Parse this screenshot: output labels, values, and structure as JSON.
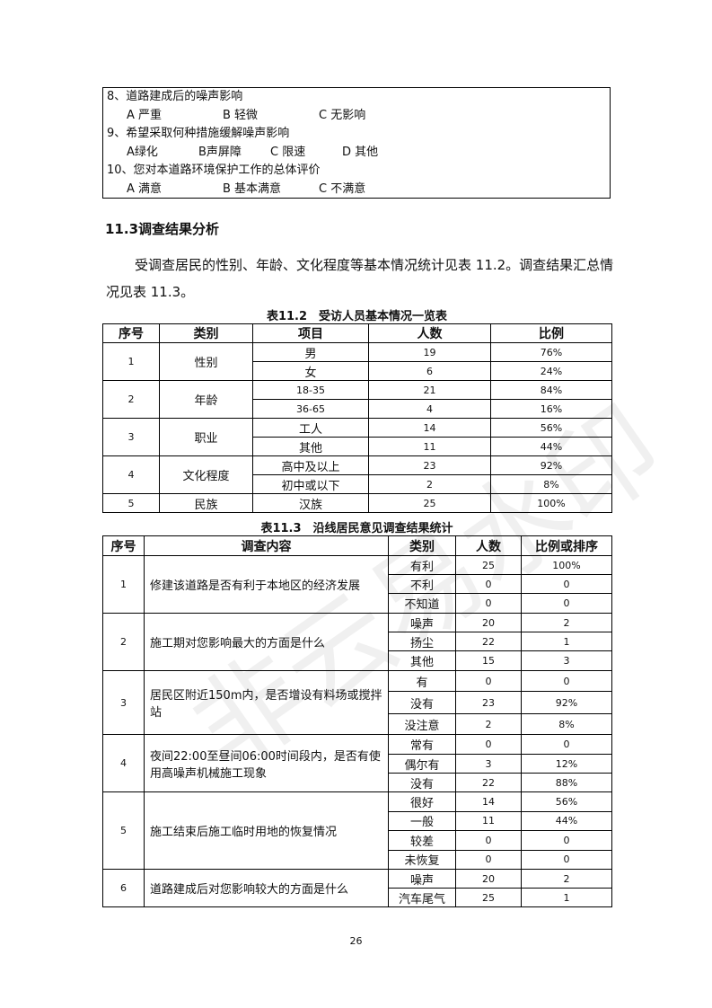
{
  "questions": [
    {
      "q": "8、道路建成后的噪声影响",
      "opts": [
        "A 严重",
        "B 轻微",
        "C 无影响"
      ]
    },
    {
      "q": "9、希望采取何种措施缓解噪声影响",
      "opts": [
        "A绿化",
        "B声屏障",
        "C 限速",
        "D 其他"
      ]
    },
    {
      "q": "10、您对本道路环境保护工作的总体评价",
      "opts": [
        "A 满意",
        "B 基本满意",
        "C 不满意"
      ]
    }
  ],
  "section_heading": "11.3调查结果分析",
  "paragraph": "受调查居民的性别、年龄、文化程度等基本情况统计见表 11.2。调查结果汇总情况见表 11.3。",
  "table1": {
    "caption": "表11.2　受访人员基本情况一览表",
    "headers": [
      "序号",
      "类别",
      "项目",
      "人数",
      "比例"
    ],
    "groups": [
      {
        "no": "1",
        "cat": "性别",
        "rows": [
          [
            "男",
            "19",
            "76%"
          ],
          [
            "女",
            "6",
            "24%"
          ]
        ]
      },
      {
        "no": "2",
        "cat": "年龄",
        "rows": [
          [
            "18-35",
            "21",
            "84%"
          ],
          [
            "36-65",
            "4",
            "16%"
          ]
        ]
      },
      {
        "no": "3",
        "cat": "职业",
        "rows": [
          [
            "工人",
            "14",
            "56%"
          ],
          [
            "其他",
            "11",
            "44%"
          ]
        ]
      },
      {
        "no": "4",
        "cat": "文化程度",
        "rows": [
          [
            "高中及以上",
            "23",
            "92%"
          ],
          [
            "初中或以下",
            "2",
            "8%"
          ]
        ]
      },
      {
        "no": "5",
        "cat": "民族",
        "rows": [
          [
            "汉族",
            "25",
            "100%"
          ]
        ]
      }
    ]
  },
  "table2": {
    "caption": "表11.3　沿线居民意见调查结果统计",
    "headers": [
      "序号",
      "调查内容",
      "类别",
      "人数",
      "比例或排序"
    ],
    "groups": [
      {
        "no": "1",
        "q": "修建该道路是否有利于本地区的经济发展",
        "rows": [
          [
            "有利",
            "25",
            "100%"
          ],
          [
            "不利",
            "0",
            "0"
          ],
          [
            "不知道",
            "0",
            "0"
          ]
        ]
      },
      {
        "no": "2",
        "q": "施工期对您影响最大的方面是什么",
        "rows": [
          [
            "噪声",
            "20",
            "2"
          ],
          [
            "扬尘",
            "22",
            "1"
          ],
          [
            "其他",
            "15",
            "3"
          ]
        ]
      },
      {
        "no": "3",
        "q": "居民区附近150m内，是否增设有料场或搅拌站",
        "rows": [
          [
            "有",
            "0",
            "0"
          ],
          [
            "没有",
            "23",
            "92%"
          ],
          [
            "没注意",
            "2",
            "8%"
          ]
        ]
      },
      {
        "no": "4",
        "q": "夜间22:00至昼间06:00时间段内，是否有使用高噪声机械施工现象",
        "rows": [
          [
            "常有",
            "0",
            "0"
          ],
          [
            "偶尔有",
            "3",
            "12%"
          ],
          [
            "没有",
            "22",
            "88%"
          ]
        ]
      },
      {
        "no": "5",
        "q": "施工结束后施工临时用地的恢复情况",
        "rows": [
          [
            "很好",
            "14",
            "56%"
          ],
          [
            "一般",
            "11",
            "44%"
          ],
          [
            "较差",
            "0",
            "0"
          ],
          [
            "未恢复",
            "0",
            "0"
          ]
        ]
      },
      {
        "no": "6",
        "q": "道路建成后对您影响较大的方面是什么",
        "rows": [
          [
            "噪声",
            "20",
            "2"
          ],
          [
            "汽车尾气",
            "25",
            "1"
          ]
        ]
      }
    ]
  },
  "page_number": "26",
  "watermark": "非云易水印"
}
